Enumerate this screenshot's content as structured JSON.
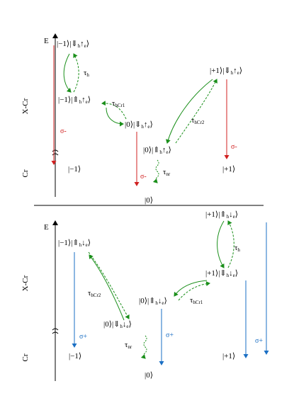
{
  "panels": [
    {
      "texts": [
        [
          "E"
        ],
        [
          "X-Cr"
        ],
        [
          "Cr"
        ],
        [
          "|−1⟩|⇓",
          "h",
          "↑",
          "e",
          "⟩"
        ],
        [
          "|−1⟩|⇑",
          "h",
          "↑",
          "e",
          "⟩"
        ],
        [
          "τ",
          "h"
        ],
        [
          "τ",
          "hCr1"
        ],
        [
          "|0⟩|⇓",
          "h",
          "↑",
          "e",
          "⟩"
        ],
        [
          "|0⟩|⇑",
          "h",
          "↑",
          "e",
          "⟩"
        ],
        [
          "τ",
          "hCr2"
        ],
        [
          "|+1⟩|⇓",
          "h",
          "↑",
          "e",
          "⟩"
        ],
        [
          "σ-"
        ],
        [
          "σ-"
        ],
        [
          "σ-"
        ],
        [
          "τ",
          "nr"
        ],
        [
          "|−1⟩"
        ],
        [
          "|0⟩"
        ],
        [
          "|+1⟩"
        ]
      ]
    },
    {
      "texts": [
        [
          "E"
        ],
        [
          "X-Cr"
        ],
        [
          "Cr"
        ],
        [
          "|−1⟩|⇑",
          "h",
          "↓",
          "e",
          "⟩"
        ],
        [
          "τ",
          "hCr2"
        ],
        [
          "|0⟩|⇑",
          "h",
          "↓",
          "e",
          "⟩"
        ],
        [
          "|0⟩|⇓",
          "h",
          "↓",
          "e",
          "⟩"
        ],
        [
          "τ",
          "nr"
        ],
        [
          "τ",
          "hCr1"
        ],
        [
          "|+1⟩|⇑",
          "h",
          "↓",
          "e",
          "⟩"
        ],
        [
          "τ",
          "h"
        ],
        [
          "|+1⟩|⇓",
          "h",
          "↓",
          "e",
          "⟩"
        ],
        [
          "σ+"
        ],
        [
          "σ+"
        ],
        [
          "σ+"
        ],
        [
          "|−1⟩"
        ],
        [
          "|0⟩"
        ],
        [
          "|+1⟩"
        ]
      ]
    }
  ]
}
